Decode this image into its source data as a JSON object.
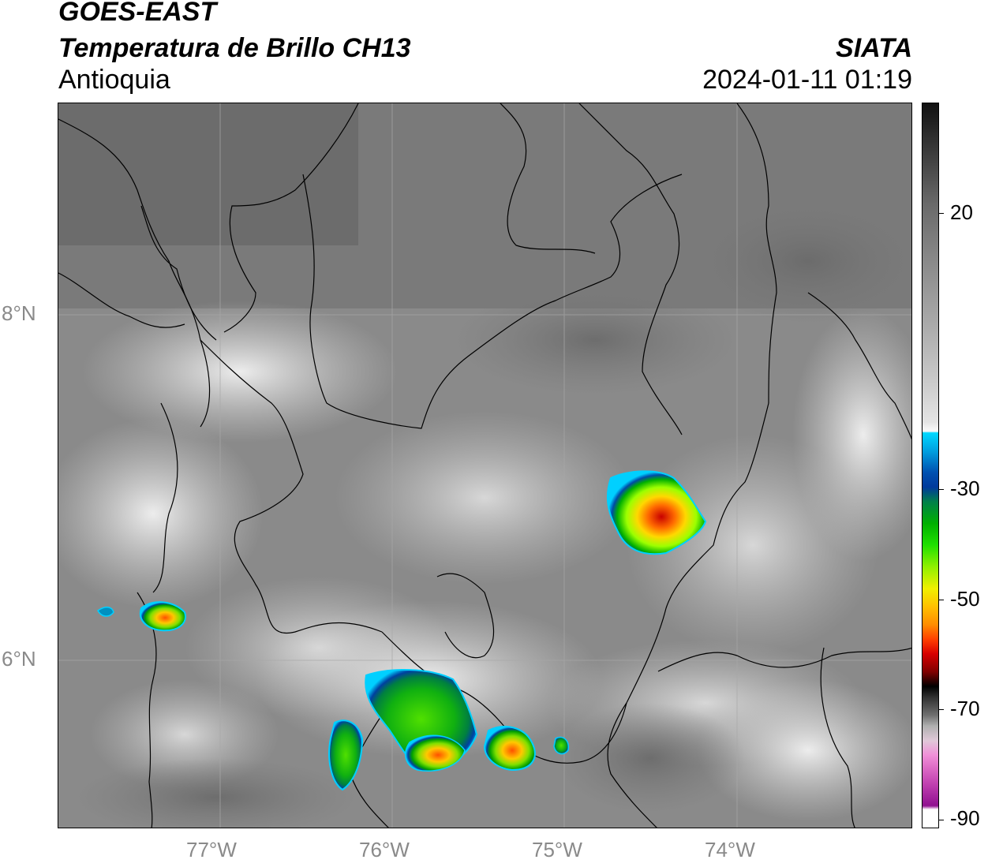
{
  "header": {
    "satellite": "GOES-EAST",
    "product": "Temperatura de Brillo CH13",
    "region": "Antioquia",
    "agency": "SIATA",
    "datetime": "2024-01-11 01:19"
  },
  "map": {
    "lon_ticks": [
      "77°W",
      "76°W",
      "75°W",
      "74°W"
    ],
    "lat_ticks": [
      "8°N",
      "6°N"
    ],
    "storm_cells": [
      {
        "name": "storm-cell-east",
        "peak": "red"
      },
      {
        "name": "storm-cell-west",
        "peak": "orange"
      },
      {
        "name": "storm-cell-south-central",
        "peak": "green"
      },
      {
        "name": "storm-cell-south-east",
        "peak": "orange"
      }
    ]
  },
  "colorbar": {
    "labels": [
      "20",
      "-30",
      "-50",
      "-70",
      "-90"
    ],
    "colors": {
      "cyan": "#00d8ff",
      "blue": "#003a9c",
      "green": "#00b000",
      "yellow": "#f0f000",
      "orange": "#ff8c00",
      "red": "#d80000",
      "black": "#000000",
      "magenta": "#e070c8",
      "purple": "#901090"
    }
  }
}
